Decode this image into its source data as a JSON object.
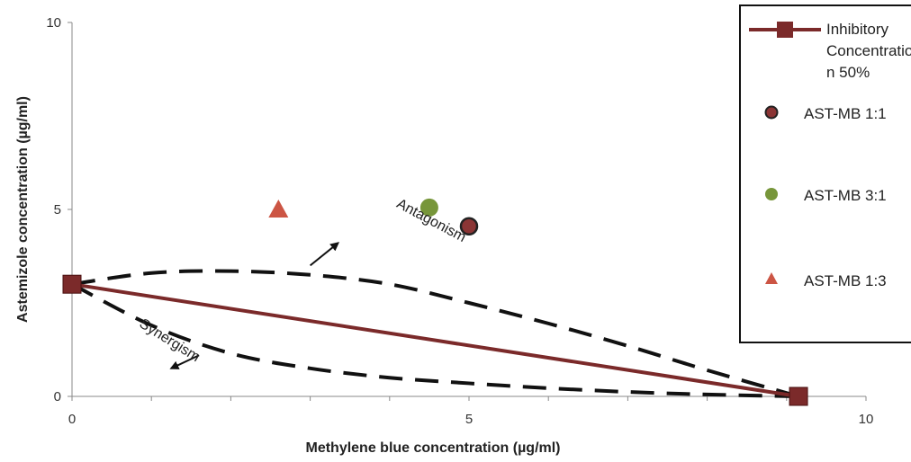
{
  "chart_data": {
    "type": "scatter",
    "title": "",
    "xlabel": "Methylene blue concentration  (µg/ml)",
    "ylabel": "Astemizole concentration  (µg/ml)",
    "xlim": [
      0,
      10
    ],
    "ylim": [
      0,
      10
    ],
    "x_ticks": [
      "0",
      "5",
      "10"
    ],
    "y_ticks": [
      "0",
      "5",
      "10"
    ],
    "grid": false,
    "legend_position": "top-right",
    "series": [
      {
        "name": "Inhibitory Concentration 50%",
        "legend_lines": [
          "Inhibitory",
          "Concentratio",
          "n 50%"
        ],
        "kind": "line",
        "marker": "square",
        "color": "#7b2a2a",
        "x": [
          0,
          9.15
        ],
        "y": [
          3.0,
          0
        ]
      },
      {
        "name": "AST-MB 1:1",
        "kind": "scatter",
        "marker": "circle-outlined",
        "color": "#8b3535",
        "edge_color": "#222222",
        "x": [
          5.0
        ],
        "y": [
          4.55
        ]
      },
      {
        "name": "AST-MB 3:1",
        "kind": "scatter",
        "marker": "circle",
        "color": "#77963a",
        "x": [
          4.5
        ],
        "y": [
          5.05
        ]
      },
      {
        "name": "AST-MB 1:3",
        "kind": "scatter",
        "marker": "triangle",
        "color": "#cc5544",
        "x": [
          2.6
        ],
        "y": [
          5.0
        ]
      }
    ],
    "annotations": [
      {
        "text": "Antagonism",
        "x": 4.5,
        "y": 4.6,
        "rotation": 28
      },
      {
        "text": "Synergism",
        "x": 1.2,
        "y": 1.4,
        "rotation": 32
      }
    ],
    "dashed_curves": [
      {
        "name": "antagonism-curve",
        "x": [
          0,
          1.0,
          2.0,
          3.0,
          4.0,
          5.0,
          6.0,
          7.0,
          8.0,
          9.15
        ],
        "y": [
          3.0,
          3.3,
          3.35,
          3.25,
          3.0,
          2.5,
          1.95,
          1.35,
          0.7,
          0
        ]
      },
      {
        "name": "synergism-curve",
        "x": [
          0,
          1.0,
          2.0,
          3.0,
          4.0,
          5.0,
          6.0,
          7.0,
          8.0,
          9.15
        ],
        "y": [
          3.0,
          1.9,
          1.15,
          0.75,
          0.5,
          0.35,
          0.22,
          0.12,
          0.05,
          0
        ]
      }
    ],
    "arrows": [
      {
        "name": "antagonism-arrow",
        "from": [
          3.0,
          3.5
        ],
        "to": [
          3.35,
          4.1
        ]
      },
      {
        "name": "synergism-arrow",
        "from": [
          1.6,
          1.1
        ],
        "to": [
          1.25,
          0.75
        ]
      }
    ]
  }
}
